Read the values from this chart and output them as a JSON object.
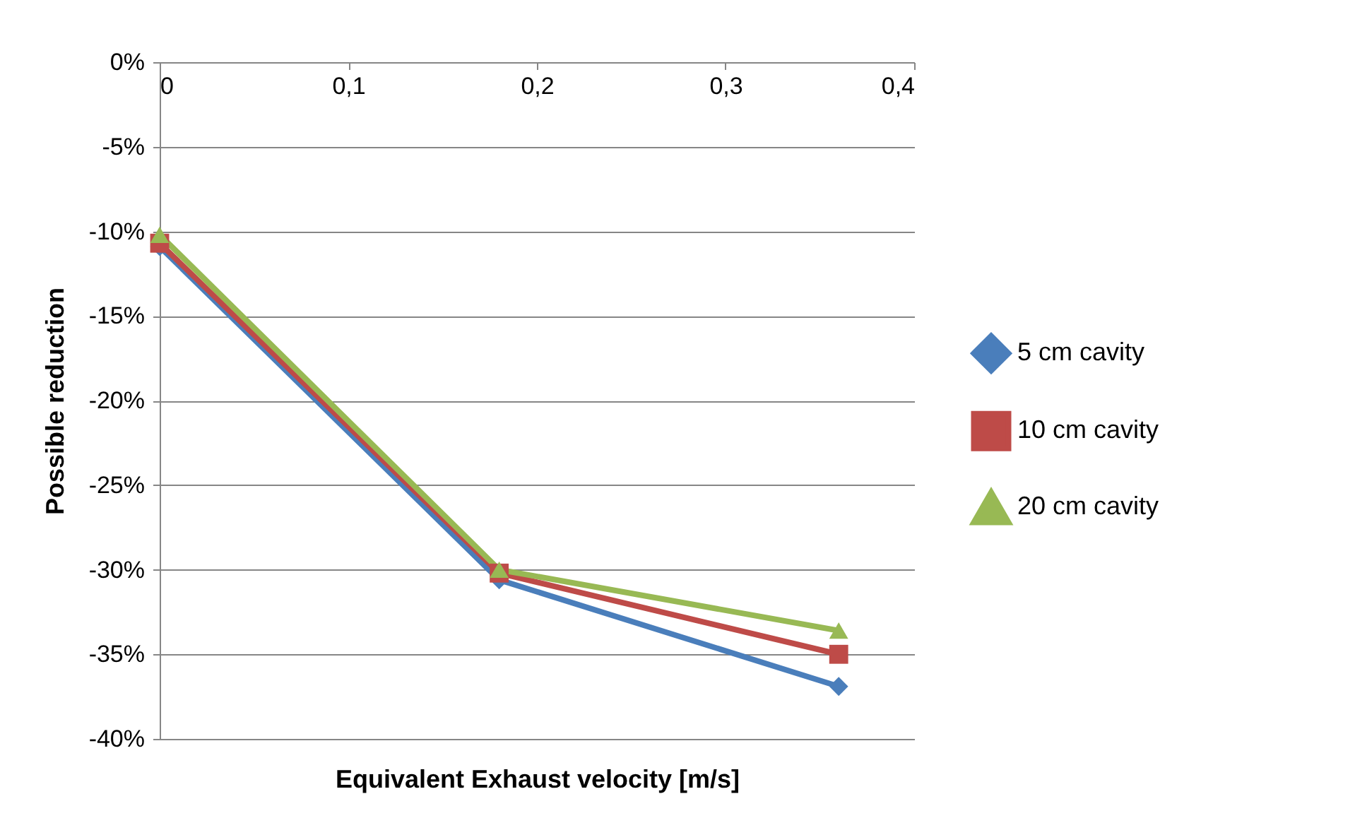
{
  "chart_data": {
    "type": "line",
    "xlabel": "Equivalent Exhaust velocity [m/s]",
    "ylabel": "Possible reduction",
    "x": [
      0,
      0.18,
      0.36
    ],
    "series": [
      {
        "name": "5 cm cavity",
        "color": "#4a7ebb",
        "values": [
          -10.9,
          -30.6,
          -36.9
        ],
        "marker": "diamond"
      },
      {
        "name": "10 cm cavity",
        "color": "#be4b48",
        "values": [
          -10.7,
          -30.2,
          -35.0
        ],
        "marker": "square"
      },
      {
        "name": "20 cm cavity",
        "color": "#98b954",
        "values": [
          -10.2,
          -30.0,
          -33.6
        ],
        "marker": "triangle"
      }
    ],
    "xlim": [
      0,
      0.4
    ],
    "xticks": [
      {
        "value": 0,
        "label": "0"
      },
      {
        "value": 0.1,
        "label": "0,1"
      },
      {
        "value": 0.2,
        "label": "0,2"
      },
      {
        "value": 0.3,
        "label": "0,3"
      },
      {
        "value": 0.4,
        "label": "0,4"
      }
    ],
    "ylim": [
      -40,
      0
    ],
    "yticks": [
      {
        "value": -40,
        "label": "-40%"
      },
      {
        "value": -35,
        "label": "-35%"
      },
      {
        "value": -30,
        "label": "-30%"
      },
      {
        "value": -25,
        "label": "-25%"
      },
      {
        "value": -20,
        "label": "-20%"
      },
      {
        "value": -15,
        "label": "-15%"
      },
      {
        "value": -10,
        "label": "-10%"
      },
      {
        "value": -5,
        "label": "-5%"
      },
      {
        "value": 0,
        "label": "0%"
      }
    ],
    "grid": "y",
    "legend": "right",
    "line_style": "solid"
  }
}
